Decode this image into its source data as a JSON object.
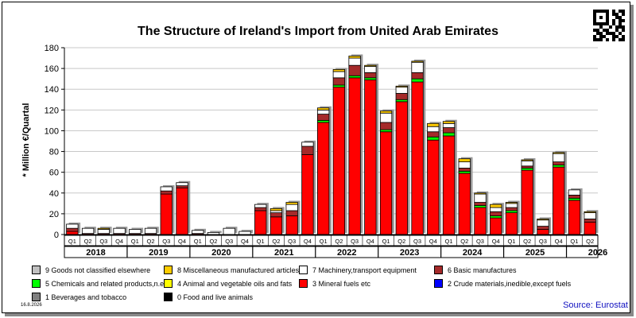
{
  "chart_data": {
    "type": "bar",
    "stacked": true,
    "title": "The Structure of Ireland's Import from United Arab Emirates",
    "ylabel": "* Million €/Quartal",
    "ylim": [
      0,
      180
    ],
    "yticks": [
      0,
      20,
      40,
      60,
      80,
      100,
      120,
      140,
      160,
      180
    ],
    "grid": "horizontal",
    "legend_position": "bottom",
    "years": [
      "2018",
      "2019",
      "2020",
      "2021",
      "2022",
      "2023",
      "2024",
      "2025",
      "2026"
    ],
    "categories": [
      "Q1",
      "Q2",
      "Q3",
      "Q4",
      "Q1",
      "Q2",
      "Q3",
      "Q4",
      "Q1",
      "Q2",
      "Q3",
      "Q4",
      "Q1",
      "Q2",
      "Q3",
      "Q4",
      "Q1",
      "Q2",
      "Q3",
      "Q4",
      "Q1",
      "Q2",
      "Q3",
      "Q4",
      "Q1",
      "Q2",
      "Q3",
      "Q4",
      "Q1",
      "Q2",
      "Q3",
      "Q4",
      "Q1",
      "Q2"
    ],
    "series": [
      {
        "name": "0 Food and live animals",
        "color": "#000000",
        "values": [
          0,
          0,
          0,
          0,
          0,
          0,
          0,
          0,
          0,
          0,
          0,
          0,
          0,
          0,
          0,
          0,
          0,
          0,
          0,
          0,
          0,
          0,
          0,
          0,
          0,
          0,
          0,
          0,
          0,
          0,
          0,
          0,
          0,
          0
        ]
      },
      {
        "name": "1 Beverages and tobacco",
        "color": "#808080",
        "values": [
          0,
          0,
          0,
          0,
          0,
          0,
          0,
          0,
          0,
          0,
          0,
          0,
          0,
          0,
          0,
          0,
          0,
          0,
          0,
          0,
          0,
          0,
          0,
          0,
          0,
          0,
          0,
          0,
          0,
          0,
          0,
          0,
          0,
          0
        ]
      },
      {
        "name": "2 Crude materials,inedible,except fuels",
        "color": "#0000ff",
        "values": [
          0,
          0,
          0,
          0,
          0,
          0,
          0,
          0,
          0,
          0,
          0,
          0,
          0,
          0,
          0,
          0,
          0,
          0,
          0,
          0,
          0,
          0,
          0,
          0,
          0,
          0,
          0,
          0,
          0,
          0,
          0,
          0,
          0,
          0
        ]
      },
      {
        "name": "3 Mineral fuels etc",
        "color": "#ff0000",
        "values": [
          3,
          0,
          0,
          0,
          0,
          0,
          39,
          45,
          0,
          0,
          0,
          0,
          23,
          17,
          18,
          77,
          108,
          142,
          151,
          149,
          99,
          128,
          147,
          91,
          95,
          59,
          26,
          16,
          21,
          62,
          5,
          65,
          33,
          12
        ]
      },
      {
        "name": "4 Animal and vegetable oils and fats",
        "color": "#ffff00",
        "values": [
          0,
          0,
          0,
          0,
          0,
          0,
          0,
          0,
          0,
          0,
          0,
          0,
          0,
          0,
          0,
          0,
          0,
          0,
          0,
          0,
          0,
          0,
          0,
          0,
          0,
          0,
          0,
          0,
          0,
          0,
          0,
          0,
          0,
          0
        ]
      },
      {
        "name": "5 Chemicals and related products,n.e.s.",
        "color": "#00ff00",
        "values": [
          0,
          0,
          0,
          0,
          0,
          0,
          0,
          0,
          0,
          0,
          0,
          0,
          0,
          0,
          0,
          0,
          2,
          2,
          2,
          2,
          2,
          2,
          3,
          3,
          3,
          2,
          2,
          2,
          2,
          2,
          0,
          2,
          2,
          0
        ]
      },
      {
        "name": "6 Basic manufactures",
        "color": "#a52a2a",
        "values": [
          3,
          1,
          1,
          1,
          1,
          1,
          3,
          2,
          1,
          0,
          0,
          0,
          3,
          4,
          5,
          8,
          6,
          7,
          10,
          5,
          7,
          6,
          6,
          5,
          5,
          3,
          3,
          4,
          3,
          2,
          3,
          3,
          3,
          3
        ]
      },
      {
        "name": "7 Machinery,transport equipment",
        "color": "#ffffff",
        "values": [
          4,
          5,
          4,
          5,
          4,
          5,
          4,
          3,
          3,
          2,
          6,
          3,
          3,
          2,
          6,
          4,
          4,
          6,
          7,
          6,
          9,
          6,
          10,
          5,
          4,
          6,
          8,
          4,
          4,
          5,
          6,
          8,
          5,
          6
        ]
      },
      {
        "name": "8 Miscellaneous manufactured articles",
        "color": "#ffcc00",
        "values": [
          0,
          0,
          1,
          0,
          0,
          0,
          0,
          0,
          0,
          0,
          0,
          0,
          0,
          2,
          2,
          0,
          2,
          2,
          2,
          1,
          2,
          1,
          1,
          3,
          2,
          3,
          1,
          3,
          1,
          1,
          1,
          1,
          0,
          1
        ]
      },
      {
        "name": "9 Goods not classified elsewhere",
        "color": "#c0c0c0",
        "values": [
          0,
          0,
          0,
          0,
          0,
          0,
          0,
          0,
          0,
          0,
          0,
          0,
          0,
          0,
          0,
          0,
          0,
          0,
          0,
          0,
          0,
          0,
          0,
          0,
          0,
          0,
          0,
          0,
          0,
          0,
          0,
          0,
          0,
          0
        ]
      }
    ]
  },
  "footer": {
    "date": "16.8.2026",
    "source": "Source: Eurostat"
  }
}
